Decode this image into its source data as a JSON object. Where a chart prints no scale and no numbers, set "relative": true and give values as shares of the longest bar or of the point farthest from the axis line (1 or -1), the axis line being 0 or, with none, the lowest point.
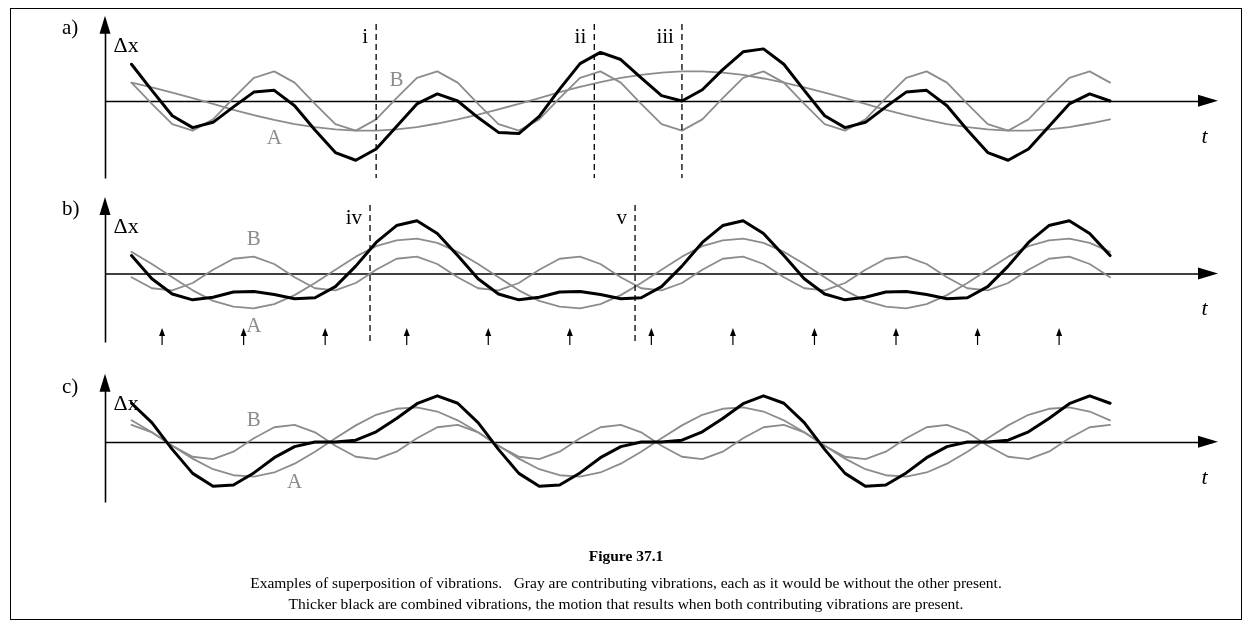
{
  "chart_data": [
    {
      "type": "line",
      "title": "a)",
      "xlabel": "t",
      "ylabel": "Δx",
      "relative": true,
      "categories": [
        null,
        null,
        null,
        null,
        null,
        null,
        null,
        null,
        null,
        null,
        null,
        null,
        null,
        null,
        null,
        null,
        null,
        null,
        null,
        null,
        null,
        null,
        null,
        null,
        null,
        null,
        null,
        null,
        null,
        null,
        null,
        null,
        null,
        null,
        null,
        null,
        null,
        null,
        null,
        null,
        null,
        null,
        null,
        null,
        null,
        null,
        null,
        null,
        null
      ],
      "series": [
        {
          "name": "A",
          "color": "#8c8c8c",
          "values": [
            0.31,
            0.23,
            0.14,
            0.05,
            -0.05,
            -0.15,
            -0.24,
            -0.32,
            -0.39,
            -0.44,
            -0.48,
            -0.5,
            -0.5,
            -0.48,
            -0.44,
            -0.38,
            -0.31,
            -0.23,
            -0.14,
            -0.05,
            0.05,
            0.15,
            0.24,
            0.32,
            0.39,
            0.44,
            0.48,
            0.5,
            0.5,
            0.48,
            0.44,
            0.38,
            0.31,
            0.23,
            0.14,
            0.05,
            -0.05,
            -0.15,
            -0.24,
            -0.32,
            -0.39,
            -0.44,
            -0.48,
            -0.5,
            -0.5,
            -0.48,
            -0.44,
            -0.38,
            -0.31
          ]
        },
        {
          "name": "B",
          "color": "#8c8c8c",
          "values": [
            0.31,
            -0.05,
            -0.39,
            -0.5,
            -0.31,
            0.05,
            0.39,
            0.5,
            0.31,
            -0.05,
            -0.39,
            -0.5,
            -0.31,
            0.05,
            0.39,
            0.5,
            0.31,
            -0.05,
            -0.39,
            -0.5,
            -0.31,
            0.05,
            0.39,
            0.5,
            0.31,
            -0.05,
            -0.39,
            -0.5,
            -0.31,
            0.05,
            0.39,
            0.5,
            0.31,
            -0.05,
            -0.39,
            -0.5,
            -0.31,
            0.05,
            0.39,
            0.5,
            0.31,
            -0.05,
            -0.39,
            -0.5,
            -0.31,
            0.05,
            0.39,
            0.5,
            0.31
          ]
        },
        {
          "color": "#000000",
          "values": [
            0.62,
            0.18,
            -0.25,
            -0.45,
            -0.36,
            -0.1,
            0.15,
            0.18,
            -0.08,
            -0.49,
            -0.87,
            -1,
            -0.81,
            -0.43,
            -0.05,
            0.12,
            0,
            -0.28,
            -0.53,
            -0.55,
            -0.26,
            0.2,
            0.63,
            0.82,
            0.7,
            0.39,
            0.09,
            0,
            0.19,
            0.53,
            0.83,
            0.88,
            0.62,
            0.18,
            -0.25,
            -0.45,
            -0.36,
            -0.1,
            0.15,
            0.18,
            -0.08,
            -0.49,
            -0.87,
            -1,
            -0.81,
            -0.43,
            -0.05,
            0.12,
            0
          ]
        }
      ],
      "annotations": [
        "i",
        "ii",
        "iii"
      ]
    },
    {
      "type": "line",
      "title": "b)",
      "xlabel": "t",
      "ylabel": "Δx",
      "relative": true,
      "categories": [
        null,
        null,
        null,
        null,
        null,
        null,
        null,
        null,
        null,
        null,
        null,
        null,
        null,
        null,
        null,
        null,
        null,
        null,
        null,
        null,
        null,
        null,
        null,
        null,
        null,
        null,
        null,
        null,
        null,
        null,
        null,
        null,
        null,
        null,
        null,
        null,
        null,
        null,
        null,
        null,
        null,
        null,
        null,
        null,
        null,
        null,
        null,
        null,
        null
      ],
      "series": [
        {
          "name": "A",
          "color": "#8c8c8c",
          "values": [
            0.41,
            0.18,
            -0.07,
            -0.32,
            -0.52,
            -0.63,
            -0.66,
            -0.58,
            -0.41,
            -0.18,
            0.07,
            0.32,
            0.52,
            0.63,
            0.66,
            0.58,
            0.41,
            0.18,
            -0.07,
            -0.32,
            -0.52,
            -0.63,
            -0.66,
            -0.58,
            -0.41,
            -0.18,
            0.07,
            0.32,
            0.52,
            0.63,
            0.66,
            0.58,
            0.41,
            0.18,
            -0.07,
            -0.32,
            -0.52,
            -0.63,
            -0.66,
            -0.58,
            -0.41,
            -0.18,
            0.07,
            0.32,
            0.52,
            0.63,
            0.66,
            0.58,
            0.41
          ]
        },
        {
          "name": "B",
          "color": "#8c8c8c",
          "values": [
            -0.07,
            -0.28,
            -0.32,
            -0.18,
            0.07,
            0.28,
            0.32,
            0.18,
            -0.07,
            -0.28,
            -0.32,
            -0.18,
            0.07,
            0.28,
            0.32,
            0.18,
            -0.07,
            -0.28,
            -0.32,
            -0.18,
            0.07,
            0.28,
            0.32,
            0.18,
            -0.07,
            -0.28,
            -0.32,
            -0.18,
            0.07,
            0.28,
            0.32,
            0.18,
            -0.07,
            -0.28,
            -0.32,
            -0.18,
            0.07,
            0.28,
            0.32,
            0.18,
            -0.07,
            -0.28,
            -0.32,
            -0.18,
            0.07,
            0.28,
            0.32,
            0.18,
            -0.07
          ]
        },
        {
          "color": "#000000",
          "values": [
            0.34,
            -0.1,
            -0.39,
            -0.5,
            -0.45,
            -0.35,
            -0.34,
            -0.4,
            -0.48,
            -0.46,
            -0.25,
            0.14,
            0.59,
            0.91,
            1,
            0.76,
            0.34,
            -0.1,
            -0.39,
            -0.5,
            -0.45,
            -0.35,
            -0.34,
            -0.4,
            -0.48,
            -0.46,
            -0.25,
            0.14,
            0.59,
            0.91,
            1,
            0.76,
            0.34,
            -0.1,
            -0.39,
            -0.5,
            -0.45,
            -0.35,
            -0.34,
            -0.4,
            -0.48,
            -0.46,
            -0.25,
            0.14,
            0.59,
            0.91,
            1,
            0.76,
            0.34
          ]
        }
      ],
      "annotations": [
        "iv",
        "v"
      ]
    },
    {
      "type": "line",
      "title": "c)",
      "xlabel": "t",
      "ylabel": "Δx",
      "relative": true,
      "categories": [
        null,
        null,
        null,
        null,
        null,
        null,
        null,
        null,
        null,
        null,
        null,
        null,
        null,
        null,
        null,
        null,
        null,
        null,
        null,
        null,
        null,
        null,
        null,
        null,
        null,
        null,
        null,
        null,
        null,
        null,
        null,
        null,
        null,
        null,
        null,
        null,
        null,
        null,
        null,
        null,
        null,
        null,
        null,
        null,
        null,
        null,
        null,
        null,
        null
      ],
      "series": [
        {
          "name": "A",
          "color": "#8c8c8c",
          "values": [
            0.47,
            0.21,
            -0.08,
            -0.36,
            -0.59,
            -0.72,
            -0.75,
            -0.66,
            -0.47,
            -0.21,
            0.08,
            0.36,
            0.59,
            0.72,
            0.75,
            0.66,
            0.47,
            0.21,
            -0.08,
            -0.36,
            -0.59,
            -0.72,
            -0.75,
            -0.66,
            -0.47,
            -0.21,
            0.08,
            0.36,
            0.59,
            0.72,
            0.75,
            0.66,
            0.47,
            0.21,
            -0.08,
            -0.36,
            -0.59,
            -0.72,
            -0.75,
            -0.66,
            -0.47,
            -0.21,
            0.08,
            0.36,
            0.59,
            0.72,
            0.75,
            0.66,
            0.47
          ]
        },
        {
          "name": "B",
          "color": "#8c8c8c",
          "values": [
            0.37,
            0.21,
            -0.08,
            -0.32,
            -0.37,
            -0.21,
            0.08,
            0.32,
            0.37,
            0.21,
            -0.08,
            -0.32,
            -0.37,
            -0.21,
            0.08,
            0.32,
            0.37,
            0.21,
            -0.08,
            -0.32,
            -0.37,
            -0.21,
            0.08,
            0.32,
            0.37,
            0.21,
            -0.08,
            -0.32,
            -0.37,
            -0.21,
            0.08,
            0.32,
            0.37,
            0.21,
            -0.08,
            -0.32,
            -0.37,
            -0.21,
            0.08,
            0.32,
            0.37,
            0.21,
            -0.08,
            -0.32,
            -0.37,
            -0.21,
            0.08,
            0.32,
            0.37
          ]
        },
        {
          "color": "#000000",
          "values": [
            0.84,
            0.42,
            -0.16,
            -0.68,
            -0.96,
            -0.93,
            -0.67,
            -0.34,
            -0.1,
            0,
            0,
            0.04,
            0.22,
            0.51,
            0.83,
            1,
            0.84,
            0.42,
            -0.16,
            -0.68,
            -0.96,
            -0.93,
            -0.67,
            -0.34,
            -0.1,
            0,
            0,
            0.04,
            0.22,
            0.51,
            0.83,
            1,
            0.84,
            0.42,
            -0.16,
            -0.68,
            -0.96,
            -0.93,
            -0.67,
            -0.34,
            -0.1,
            0,
            0,
            0.04,
            0.22,
            0.51,
            0.83,
            1,
            0.84
          ]
        }
      ],
      "annotations": [
        "Figure 37.1",
        "Examples of superposition of vibrations.   Gray are contributing vibrations, each as it would be without the other present.",
        "Thicker black are combined vibrations, the motion that results when both contributing vibrations are present."
      ]
    }
  ]
}
